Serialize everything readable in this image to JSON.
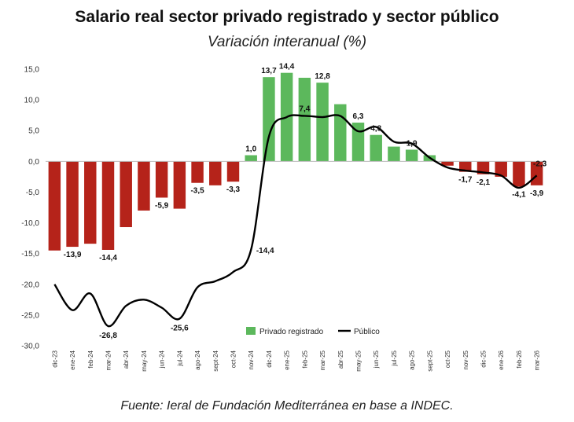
{
  "chart_data": {
    "type": "bar",
    "title": "Salario real sector privado registrado y sector público",
    "subtitle": "Variación interanual (%)",
    "source": "Fuente: Ieral de Fundación Mediterránea en base a INDEC.",
    "ylim": [
      -30,
      15
    ],
    "yticks": [
      "15,0",
      "10,0",
      "5,0",
      "0,0",
      "-5,0",
      "-10,0",
      "-15,0",
      "-20,0",
      "-25,0",
      "-30,0"
    ],
    "categories": [
      "dic-23",
      "ene-24",
      "feb-24",
      "mar-24",
      "abr-24",
      "may-24",
      "jun-24",
      "jul-24",
      "ago-24",
      "sept-24",
      "oct-24",
      "nov-24",
      "dic-24",
      "ene-25",
      "feb-25",
      "mar-25",
      "abr-25",
      "may-25",
      "jun-25",
      "jul-25",
      "ago-25",
      "sept-25",
      "oct-25",
      "nov-25",
      "dic-25",
      "ene-26",
      "feb-26",
      "mar-26"
    ],
    "series": [
      {
        "name": "Privado registrado",
        "kind": "bar",
        "values": [
          -14.5,
          -13.9,
          -13.4,
          -14.4,
          -10.7,
          -8.0,
          -5.9,
          -7.7,
          -3.5,
          -3.9,
          -3.3,
          1.0,
          13.7,
          14.4,
          13.6,
          12.8,
          9.3,
          6.3,
          4.3,
          2.4,
          1.9,
          1.0,
          -0.7,
          -1.7,
          -2.1,
          -2.5,
          -4.1,
          -3.9
        ],
        "labels": [
          "",
          "-13,9",
          "",
          "-14,4",
          "",
          "",
          "-5,9",
          "",
          "-3,5",
          "",
          "-3,3",
          "1,0",
          "13,7",
          "14,4",
          "",
          "12,8",
          "",
          "6,3",
          "4,3",
          "",
          "1,9",
          "",
          "",
          "-1,7",
          "-2,1",
          "",
          "-4,1",
          "-3,9"
        ]
      },
      {
        "name": "Público",
        "kind": "line",
        "values": [
          -20.0,
          -24.2,
          -21.5,
          -26.8,
          -23.5,
          -22.5,
          -23.8,
          -25.6,
          -20.5,
          -19.5,
          -18.0,
          -14.4,
          4.0,
          7.2,
          7.4,
          7.2,
          7.4,
          4.9,
          5.6,
          3.2,
          2.9,
          0.6,
          -1.0,
          -1.5,
          -1.8,
          -2.3,
          -4.3,
          -2.3
        ],
        "labels": [
          "",
          "",
          "",
          "-26,8",
          "",
          "",
          "",
          "-25,6",
          "",
          "",
          "",
          "-14,4",
          "",
          "",
          "7,4",
          "",
          "",
          "",
          "",
          "",
          "",
          "",
          "",
          "",
          "",
          "",
          "",
          "-2,3"
        ]
      }
    ],
    "colors": {
      "positive": "#5cb85c",
      "negative": "#b5231a",
      "line": "#000000"
    },
    "legend_position": "bottom-center"
  }
}
